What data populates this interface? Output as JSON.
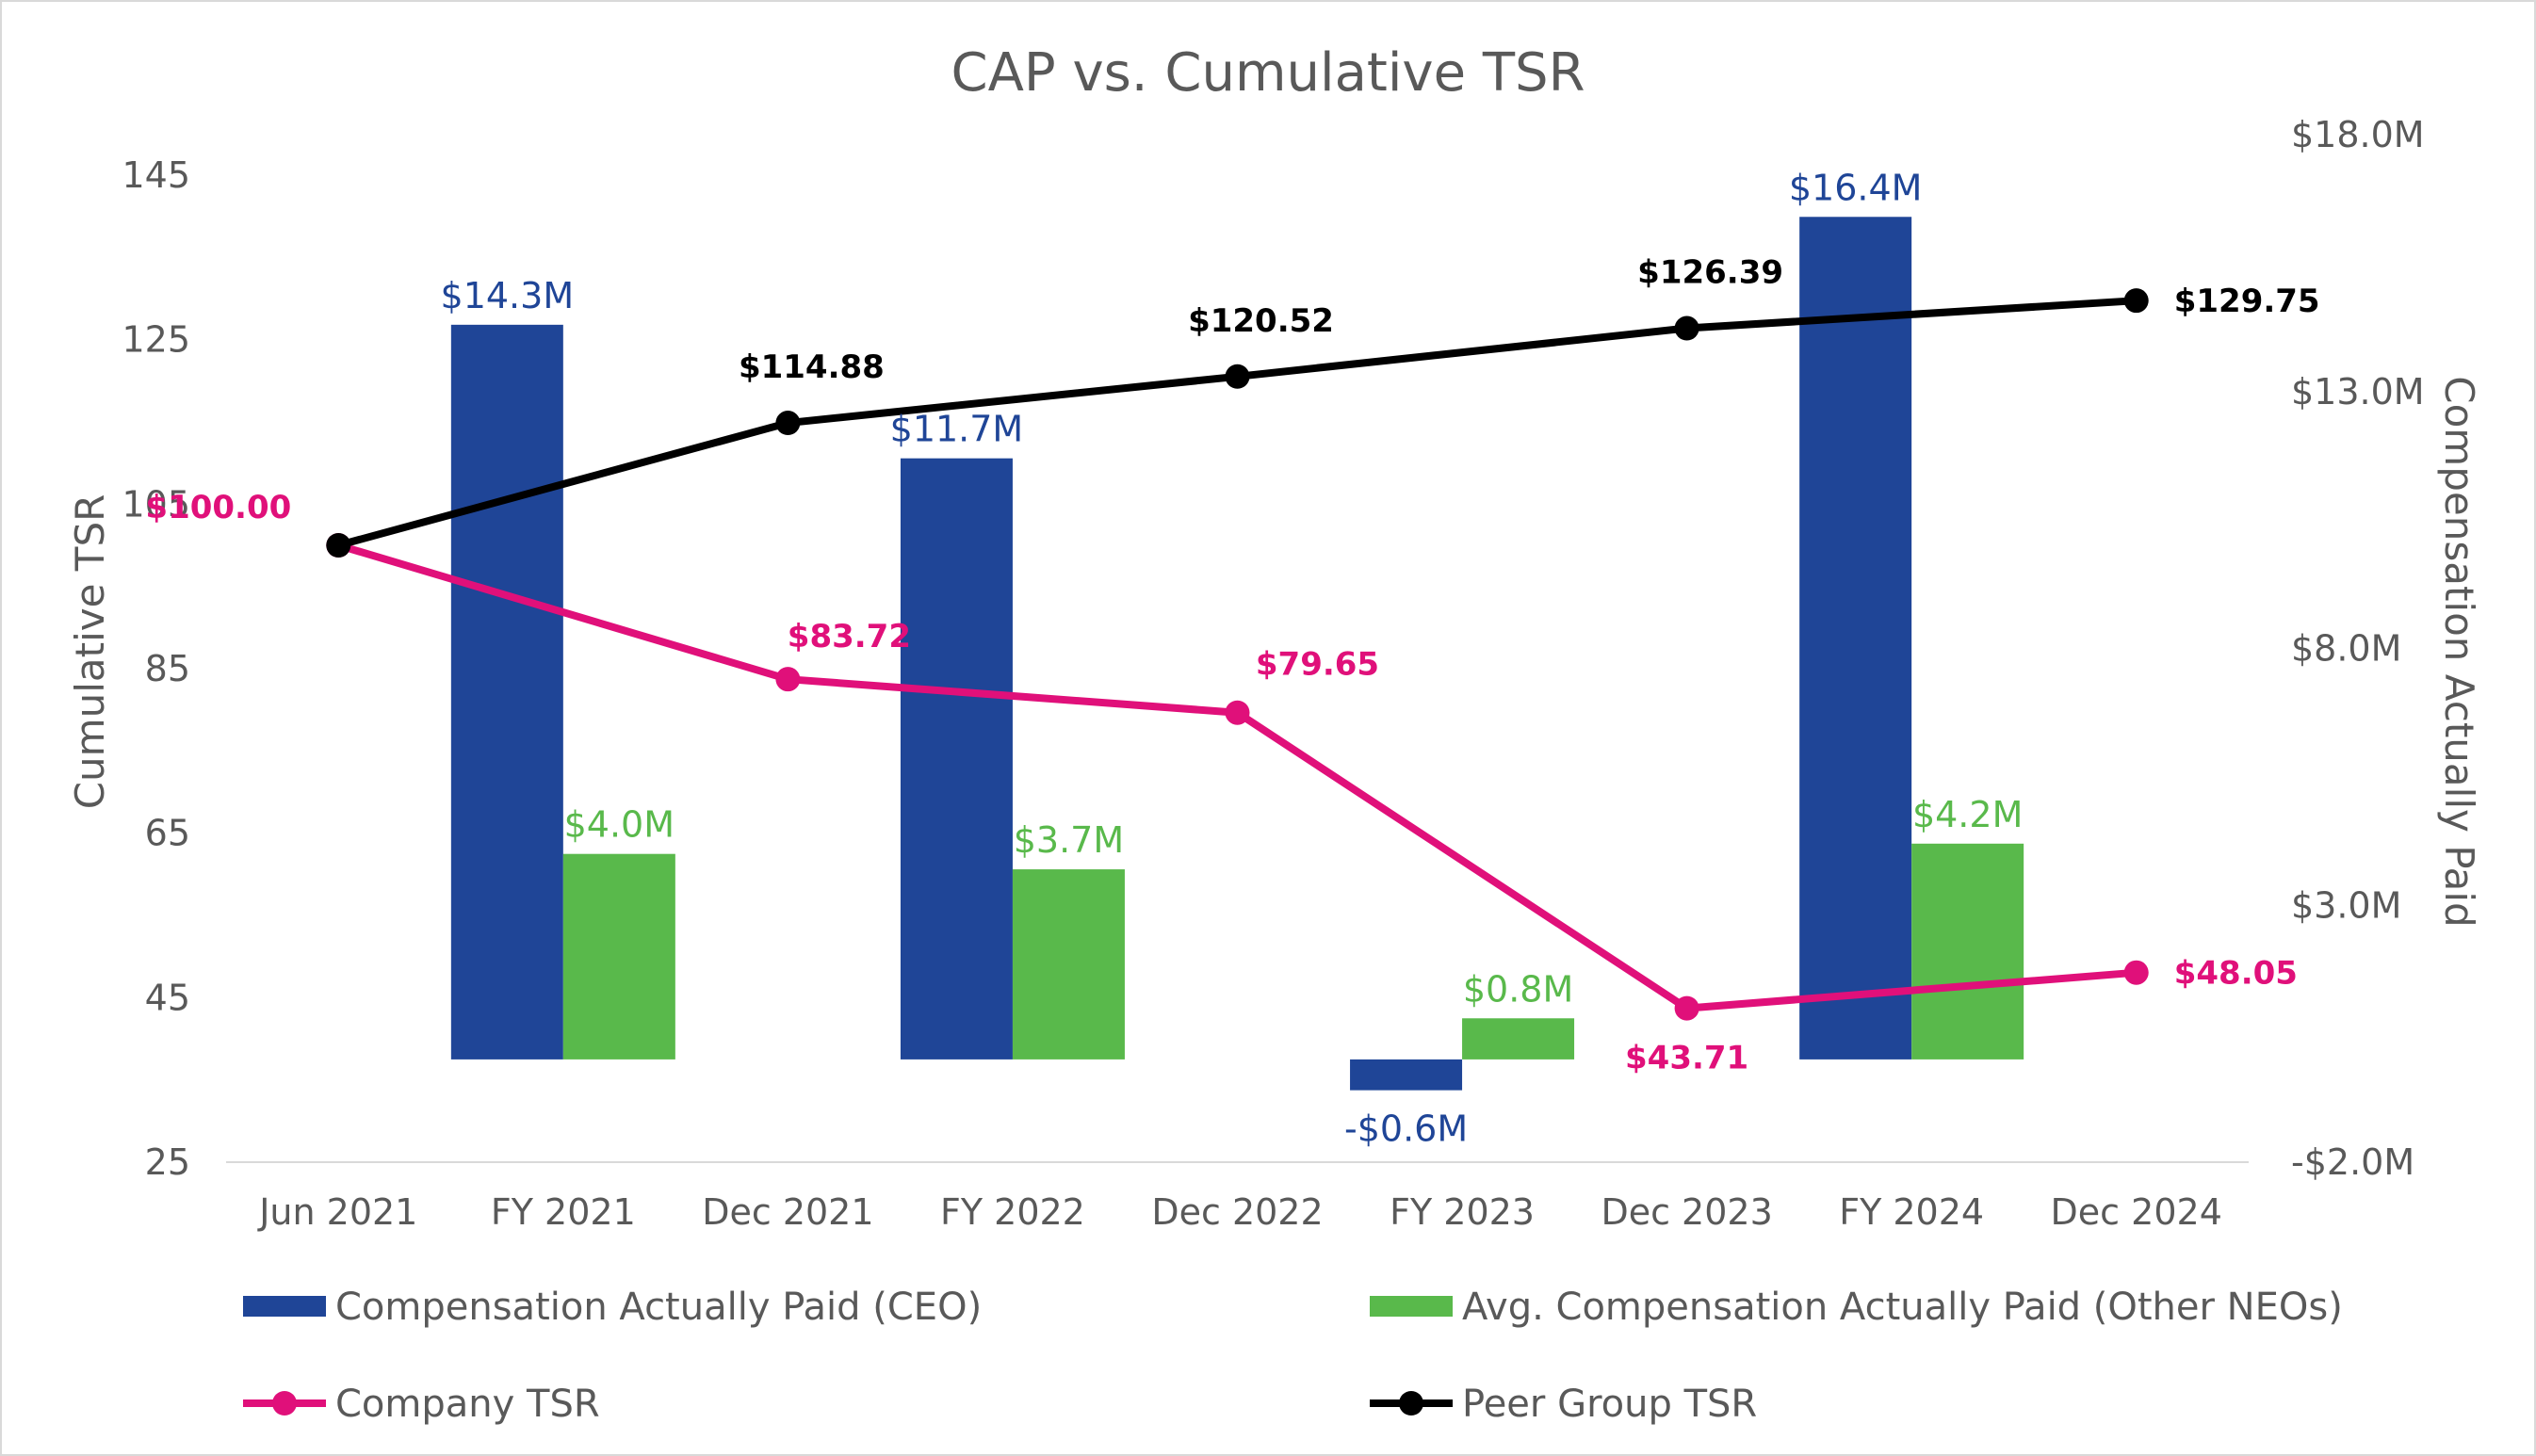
{
  "chart_data": {
    "type": "bar",
    "title": "CAP vs. Cumulative TSR",
    "categories": [
      "Jun 2021",
      "FY 2021",
      "Dec 2021",
      "FY 2022",
      "Dec 2022",
      "FY 2023",
      "Dec 2023",
      "FY 2024",
      "Dec 2024"
    ],
    "ylabel_left": "Cumulative TSR",
    "ylabel_right": "Compensation Actually Paid",
    "ylim_left": [
      25,
      145
    ],
    "yticks_left": [
      25,
      45,
      65,
      85,
      105,
      125,
      145
    ],
    "ylim_right": [
      -2.0,
      18.0
    ],
    "yticks_right": [
      -2.0,
      3.0,
      8.0,
      13.0,
      18.0
    ],
    "yticks_right_labels": [
      "-$2.0M",
      "$3.0M",
      "$8.0M",
      "$13.0M",
      "$18.0M"
    ],
    "bar_series": [
      {
        "name": "Compensation Actually Paid (CEO)",
        "color": "#1f4597",
        "points": [
          {
            "category": "FY 2021",
            "value": 14.3,
            "label": "$14.3M"
          },
          {
            "category": "FY 2022",
            "value": 11.7,
            "label": "$11.7M"
          },
          {
            "category": "FY 2023",
            "value": -0.6,
            "label": "-$0.6M"
          },
          {
            "category": "FY 2024",
            "value": 16.4,
            "label": "$16.4M"
          }
        ]
      },
      {
        "name": "Avg. Compensation Actually Paid (Other NEOs)",
        "color": "#59b94b",
        "points": [
          {
            "category": "FY 2021",
            "value": 4.0,
            "label": "$4.0M"
          },
          {
            "category": "FY 2022",
            "value": 3.7,
            "label": "$3.7M"
          },
          {
            "category": "FY 2023",
            "value": 0.8,
            "label": "$0.8M"
          },
          {
            "category": "FY 2024",
            "value": 4.2,
            "label": "$4.2M"
          }
        ]
      }
    ],
    "line_series": [
      {
        "name": "Company TSR",
        "color": "#e0107a",
        "points": [
          {
            "category": "Jun 2021",
            "value": 100.0,
            "label": "$100.00"
          },
          {
            "category": "Dec 2021",
            "value": 83.72,
            "label": "$83.72"
          },
          {
            "category": "Dec 2022",
            "value": 79.65,
            "label": "$79.65"
          },
          {
            "category": "Dec 2023",
            "value": 43.71,
            "label": "$43.71"
          },
          {
            "category": "Dec 2024",
            "value": 48.05,
            "label": "$48.05"
          }
        ]
      },
      {
        "name": "Peer Group TSR",
        "color": "#000000",
        "points": [
          {
            "category": "Jun 2021",
            "value": 100.0,
            "label": ""
          },
          {
            "category": "Dec 2021",
            "value": 114.88,
            "label": "$114.88"
          },
          {
            "category": "Dec 2022",
            "value": 120.52,
            "label": "$120.52"
          },
          {
            "category": "Dec 2023",
            "value": 126.39,
            "label": "$126.39"
          },
          {
            "category": "Dec 2024",
            "value": 129.75,
            "label": "$129.75"
          }
        ]
      }
    ],
    "legend": [
      "Compensation Actually Paid (CEO)",
      "Avg. Compensation Actually Paid (Other NEOs)",
      "Company TSR",
      "Peer Group TSR"
    ],
    "legend_position": "bottom",
    "grid": false
  }
}
